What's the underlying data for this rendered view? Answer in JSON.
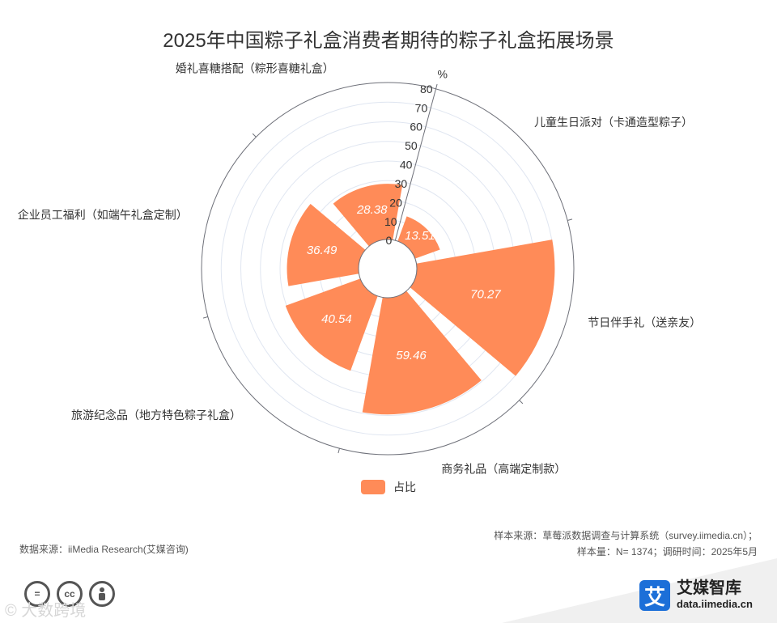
{
  "chart_data": {
    "type": "polar-bar",
    "title": "2025年中国粽子礼盒消费者期待的粽子礼盒拓展场景",
    "unit": "%",
    "radial_ticks": [
      "0",
      "10",
      "20",
      "30",
      "40",
      "50",
      "60",
      "70",
      "80"
    ],
    "rlim": [
      0,
      80
    ],
    "grid": true,
    "categories": [
      "儿童生日派对（卡通造型粽子）",
      "节日伴手礼（送亲友）",
      "商务礼品（高端定制款）",
      "旅游纪念品（地方特色粽子礼盒）",
      "企业员工福利（如端午礼盒定制）",
      "婚礼喜糖搭配（粽形喜糖礼盒）"
    ],
    "series": [
      {
        "name": "占比",
        "values": [
          13.51,
          70.27,
          59.46,
          40.54,
          36.49,
          28.38
        ],
        "value_labels": [
          "13.51",
          "70.27",
          "59.46",
          "40.54",
          "36.49",
          "28.38"
        ]
      }
    ],
    "legend_position": "bottom",
    "colors": {
      "bar": "#ff8b58",
      "axis": "#6e7079",
      "grid": "#e0e6f1"
    }
  },
  "source": {
    "left": "数据来源：iiMedia Research(艾媒咨询)",
    "right_line1": "样本来源：草莓派数据调查与计算系统（survey.iimedia.cn）；",
    "right_line2": "样本量：N= 1374；调研时间：2025年5月"
  },
  "brand": {
    "logo_char": "艾",
    "name": "艾媒智库",
    "url": "data.iimedia.cn",
    "color": "#1c6fd8"
  },
  "icons": [
    "equals-icon",
    "cc-icon",
    "person-icon"
  ],
  "watermark": "© 大数跨境"
}
